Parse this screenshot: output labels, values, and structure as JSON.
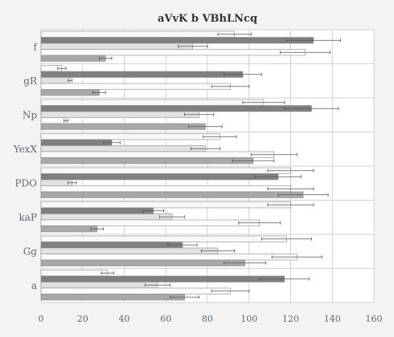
{
  "chart_data": {
    "type": "bar",
    "orientation": "horizontal",
    "title": "aVvK b VBhLNcq",
    "categories": [
      "f",
      "gR",
      "Np",
      "YexX",
      "PDO",
      "kaP",
      "Gg",
      "a"
    ],
    "xlim": [
      0,
      160
    ],
    "xticks": [
      0,
      20,
      40,
      60,
      80,
      100,
      120,
      140,
      160
    ],
    "grid": true,
    "series": [
      {
        "color": "#f8f8f8",
        "values": [
          93,
          10,
          107,
          86,
          120,
          120,
          118,
          32
        ],
        "errors": [
          8,
          2,
          10,
          8,
          11,
          11,
          12,
          3
        ]
      },
      {
        "color": "#808080",
        "values": [
          131,
          97,
          130,
          34,
          114,
          54,
          68,
          117
        ],
        "errors": [
          13,
          9,
          13,
          4,
          11,
          5,
          7,
          12
        ]
      },
      {
        "color": "#e2e2e2",
        "values": [
          73,
          14,
          76,
          79,
          15,
          63,
          85,
          56
        ],
        "errors": [
          7,
          1,
          7,
          7,
          2,
          6,
          8,
          6
        ]
      },
      {
        "color": "#fbfbfb",
        "values": [
          127,
          91,
          12,
          112,
          120,
          105,
          123,
          91
        ],
        "errors": [
          12,
          9,
          1,
          11,
          11,
          10,
          12,
          9
        ]
      },
      {
        "color": "#a8a8a8",
        "values": [
          31,
          28,
          79,
          102,
          126,
          27,
          98,
          69
        ],
        "errors": [
          3,
          3,
          8,
          10,
          12,
          3,
          10,
          7
        ]
      }
    ]
  }
}
